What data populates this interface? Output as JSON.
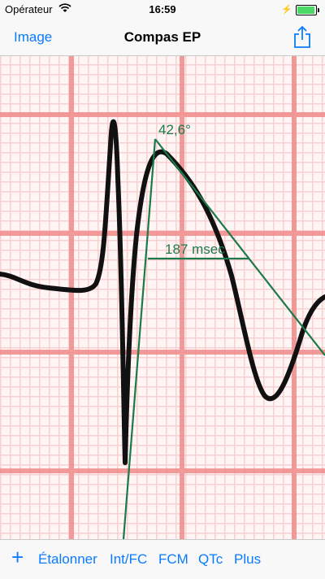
{
  "status": {
    "carrier": "Opérateur",
    "time": "16:59"
  },
  "nav": {
    "left_label": "Image",
    "title": "Compas EP"
  },
  "ecg": {
    "angle_label": "42,6°",
    "interval_label": "187 msec",
    "colors": {
      "caliper": "#1a7a4a",
      "grid": "#f08080"
    }
  },
  "toolbar": {
    "items": [
      {
        "label": "+"
      },
      {
        "label": "Étalonner"
      },
      {
        "label": "Int/FC"
      },
      {
        "label": "FCM"
      },
      {
        "label": "QTc"
      },
      {
        "label": "Plus"
      }
    ]
  }
}
